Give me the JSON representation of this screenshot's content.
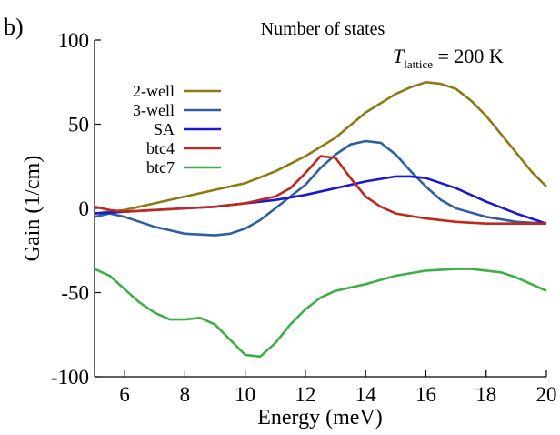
{
  "chart_data": {
    "type": "line",
    "panel_label": "b)",
    "title": "Number of states",
    "xlabel": "Energy (meV)",
    "ylabel": "Gain (1/cm)",
    "xlim": [
      5,
      20
    ],
    "ylim": [
      -100,
      100
    ],
    "xticks": [
      6,
      8,
      10,
      12,
      14,
      16,
      18,
      20
    ],
    "yticks": [
      -100,
      -50,
      0,
      50,
      100
    ],
    "annotation": {
      "symbol": "T",
      "subscript": "lattice",
      "value": " = 200 K"
    },
    "legend_position": "left",
    "series": [
      {
        "name": "2-well",
        "color": "#8c7a14",
        "x": [
          5,
          6,
          7,
          8,
          9,
          10,
          11,
          12,
          13,
          14,
          15,
          15.5,
          16,
          16.5,
          17,
          17.5,
          18,
          18.5,
          19,
          19.5,
          20
        ],
        "y": [
          -3,
          -1,
          3,
          7,
          11,
          15,
          22,
          31,
          42,
          57,
          68,
          72,
          75,
          74,
          71,
          64,
          55,
          44,
          33,
          22,
          13
        ]
      },
      {
        "name": "3-well",
        "color": "#2e5fa3",
        "x": [
          5,
          5.5,
          6,
          7,
          8,
          9,
          9.5,
          10,
          10.5,
          11,
          12,
          12.5,
          13,
          13.5,
          14,
          14.5,
          15,
          15.5,
          16,
          16.5,
          17,
          18,
          19,
          20
        ],
        "y": [
          -5,
          -3,
          -5,
          -11,
          -15,
          -16,
          -15,
          -12,
          -7,
          0,
          14,
          24,
          32,
          38,
          40,
          39,
          32,
          22,
          13,
          5,
          0,
          -5,
          -8,
          -9
        ]
      },
      {
        "name": "SA",
        "color": "#1a1acc",
        "x": [
          5,
          6,
          7,
          8,
          9,
          10,
          11,
          12,
          13,
          14,
          15,
          15.5,
          16,
          17,
          18,
          19,
          20
        ],
        "y": [
          -3,
          -2,
          -1,
          0,
          1,
          3,
          5,
          8,
          12,
          16,
          19,
          19,
          18,
          12,
          4,
          -3,
          -9
        ]
      },
      {
        "name": "btc4",
        "color": "#c0281e",
        "x": [
          5,
          5.5,
          6,
          7,
          8,
          9,
          10,
          11,
          11.5,
          12,
          12.5,
          13,
          13.5,
          14,
          14.5,
          15,
          16,
          17,
          18,
          19,
          20
        ],
        "y": [
          1,
          -1,
          -2,
          -1,
          0,
          1,
          3,
          7,
          12,
          21,
          31,
          30,
          18,
          7,
          1,
          -3,
          -6,
          -8,
          -9,
          -9,
          -9
        ]
      },
      {
        "name": "btc7",
        "color": "#3fae49",
        "x": [
          5,
          5.5,
          6,
          6.5,
          7,
          7.5,
          8,
          8.5,
          9,
          9.5,
          10,
          10.5,
          11,
          11.5,
          12,
          12.5,
          13,
          14,
          15,
          16,
          17,
          17.5,
          18,
          18.5,
          19,
          20
        ],
        "y": [
          -36,
          -40,
          -48,
          -56,
          -62,
          -66,
          -66,
          -65,
          -69,
          -78,
          -87,
          -88,
          -80,
          -69,
          -60,
          -53,
          -49,
          -45,
          -40,
          -37,
          -36,
          -36,
          -37,
          -38,
          -41,
          -49
        ]
      }
    ]
  }
}
